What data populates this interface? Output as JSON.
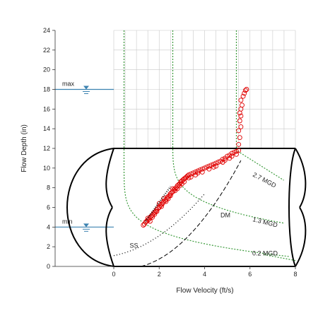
{
  "chart_data": {
    "type": "scatter",
    "xlabel": "Flow Velocity (ft/s)",
    "ylabel": "Flow Depth (in)",
    "xlim": [
      0,
      8
    ],
    "ylim": [
      0,
      24
    ],
    "xticks": [
      "0",
      "2",
      "4",
      "6",
      "8"
    ],
    "yticks": [
      "0",
      "2",
      "4",
      "6",
      "8",
      "10",
      "12",
      "14",
      "16",
      "18",
      "20",
      "22",
      "24"
    ],
    "grid": true,
    "levels": [
      {
        "label": "max",
        "depth": 18
      },
      {
        "label": "min",
        "depth": 4
      }
    ],
    "flow_curve_labels": [
      {
        "label": "2.7 MGD",
        "x": 6.1,
        "y": 9.2
      },
      {
        "label": "1.3 MGD",
        "x": 6.1,
        "y": 4.6
      },
      {
        "label": "0.2 MGD",
        "x": 6.1,
        "y": 1.1
      }
    ],
    "curve_labels": [
      {
        "label": "DM",
        "x": 4.7,
        "y": 5.0
      },
      {
        "label": "SS",
        "x": 0.7,
        "y": 1.9
      }
    ],
    "pipe_diameter": 12,
    "series": [
      {
        "marker": "open-circle",
        "color": "#e00000",
        "points": [
          [
            1.3,
            4.2
          ],
          [
            1.35,
            4.3
          ],
          [
            1.4,
            4.5
          ],
          [
            1.45,
            4.6
          ],
          [
            1.5,
            4.7
          ],
          [
            1.55,
            4.8
          ],
          [
            1.6,
            5.0
          ],
          [
            1.65,
            5.1
          ],
          [
            1.7,
            5.2
          ],
          [
            1.75,
            5.4
          ],
          [
            1.8,
            5.5
          ],
          [
            1.85,
            5.6
          ],
          [
            1.9,
            5.8
          ],
          [
            1.95,
            5.9
          ],
          [
            2.0,
            6.0
          ],
          [
            2.05,
            6.2
          ],
          [
            2.1,
            6.3
          ],
          [
            2.15,
            6.4
          ],
          [
            2.2,
            6.6
          ],
          [
            2.25,
            6.7
          ],
          [
            2.3,
            6.8
          ],
          [
            2.35,
            7.0
          ],
          [
            2.4,
            7.1
          ],
          [
            2.45,
            7.2
          ],
          [
            2.5,
            7.4
          ],
          [
            2.55,
            7.5
          ],
          [
            2.6,
            7.6
          ],
          [
            2.65,
            7.8
          ],
          [
            2.7,
            7.9
          ],
          [
            2.75,
            8.0
          ],
          [
            2.8,
            8.2
          ],
          [
            2.85,
            8.3
          ],
          [
            2.9,
            8.4
          ],
          [
            2.95,
            8.6
          ],
          [
            3.0,
            8.7
          ],
          [
            3.05,
            8.8
          ],
          [
            3.1,
            8.9
          ],
          [
            3.15,
            9.0
          ],
          [
            3.2,
            9.1
          ],
          [
            3.25,
            9.2
          ],
          [
            3.3,
            9.3
          ],
          [
            3.4,
            9.4
          ],
          [
            3.5,
            9.5
          ],
          [
            3.6,
            9.6
          ],
          [
            3.7,
            9.7
          ],
          [
            3.8,
            9.8
          ],
          [
            3.9,
            9.9
          ],
          [
            4.0,
            10.0
          ],
          [
            4.1,
            10.1
          ],
          [
            4.2,
            10.2
          ],
          [
            4.3,
            10.3
          ],
          [
            4.4,
            10.4
          ],
          [
            4.5,
            10.5
          ],
          [
            4.6,
            10.6
          ],
          [
            4.7,
            10.7
          ],
          [
            4.8,
            10.9
          ],
          [
            4.9,
            11.0
          ],
          [
            5.0,
            11.2
          ],
          [
            5.1,
            11.3
          ],
          [
            5.2,
            11.5
          ],
          [
            5.3,
            11.6
          ],
          [
            5.4,
            11.7
          ],
          [
            5.5,
            11.8
          ],
          [
            1.5,
            4.9
          ],
          [
            1.7,
            5.0
          ],
          [
            1.9,
            5.6
          ],
          [
            2.1,
            6.1
          ],
          [
            2.3,
            6.6
          ],
          [
            2.5,
            7.2
          ],
          [
            2.7,
            7.7
          ],
          [
            2.9,
            8.2
          ],
          [
            3.1,
            8.6
          ],
          [
            3.3,
            9.0
          ],
          [
            3.6,
            9.3
          ],
          [
            3.9,
            9.6
          ],
          [
            4.2,
            9.9
          ],
          [
            4.5,
            10.2
          ],
          [
            4.8,
            10.6
          ],
          [
            5.1,
            11.0
          ],
          [
            5.4,
            11.4
          ],
          [
            2.2,
            6.9
          ],
          [
            2.6,
            7.9
          ],
          [
            2.0,
            6.4
          ],
          [
            1.6,
            4.6
          ],
          [
            2.4,
            6.9
          ],
          [
            2.8,
            7.9
          ],
          [
            3.4,
            9.1
          ],
          [
            3.7,
            9.5
          ],
          [
            4.4,
            10.1
          ],
          [
            4.9,
            10.8
          ],
          [
            5.2,
            11.2
          ],
          [
            1.8,
            5.3
          ],
          [
            3.0,
            8.4
          ],
          [
            5.5,
            12.4
          ],
          [
            5.55,
            13.1
          ],
          [
            5.5,
            13.8
          ],
          [
            5.6,
            14.2
          ],
          [
            5.55,
            14.8
          ],
          [
            5.6,
            15.3
          ],
          [
            5.55,
            15.6
          ],
          [
            5.6,
            16.0
          ],
          [
            5.65,
            16.4
          ],
          [
            5.6,
            16.9
          ],
          [
            5.7,
            17.3
          ],
          [
            5.75,
            17.6
          ],
          [
            5.8,
            17.9
          ],
          [
            5.85,
            18.0
          ]
        ]
      }
    ]
  }
}
